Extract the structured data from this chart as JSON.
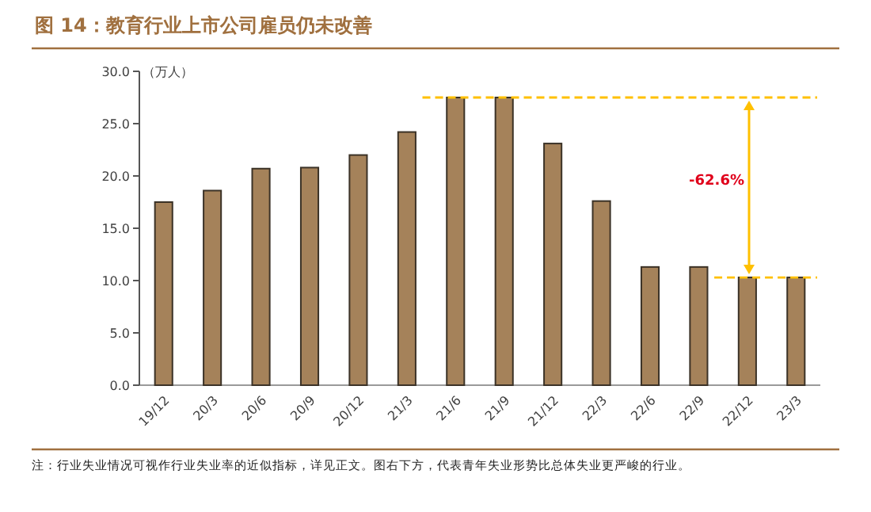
{
  "chart_data": {
    "type": "bar",
    "title": "图 14：教育行业上市公司雇员仍未改善",
    "ylabel": "（万人）",
    "categories": [
      "19/12",
      "20/3",
      "20/6",
      "20/9",
      "20/12",
      "21/3",
      "21/6",
      "21/9",
      "21/12",
      "22/3",
      "22/6",
      "22/9",
      "22/12",
      "23/3"
    ],
    "values": [
      17.5,
      18.6,
      20.7,
      20.8,
      22.0,
      24.2,
      27.5,
      27.5,
      23.1,
      17.6,
      11.3,
      11.3,
      10.3,
      10.3
    ],
    "color": "#a5825a",
    "ylim": [
      0,
      30
    ],
    "yticks": [
      {
        "value": 0,
        "label": "0.0"
      },
      {
        "value": 5,
        "label": "5.0"
      },
      {
        "value": 10,
        "label": "10.0"
      },
      {
        "value": 15,
        "label": "15.0"
      },
      {
        "value": 20,
        "label": "20.0"
      },
      {
        "value": 25,
        "label": "25.0"
      },
      {
        "value": 30,
        "label": "30.0"
      }
    ],
    "ref_lines": [
      {
        "axis": "y",
        "value": 27.5,
        "color": "#ffc000",
        "line_style": "dashed"
      },
      {
        "axis": "y",
        "value": 10.3,
        "color": "#ffc000",
        "line_style": "dashed"
      }
    ],
    "annotations": [
      "-62.6%",
      "注：行业失业情况可视作行业失业率的近似指标，详见正文。图右下方，代表青年失业形势比总体失业更严峻的行业。"
    ]
  }
}
